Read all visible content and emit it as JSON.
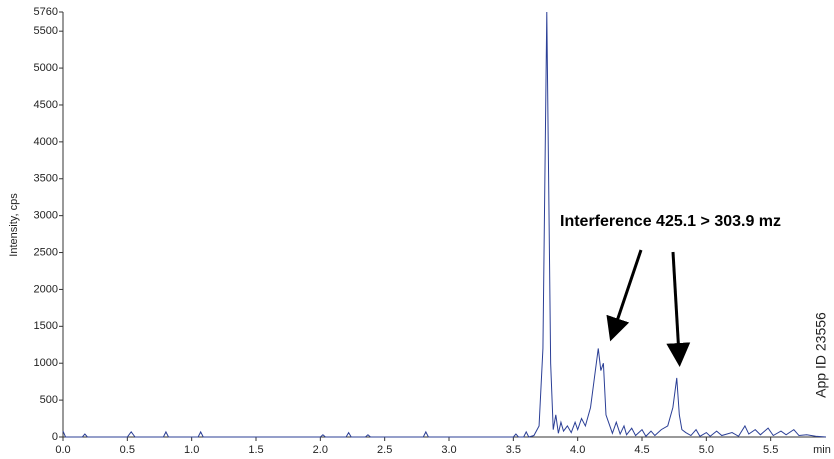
{
  "chart_data": {
    "type": "line",
    "y_label": "Intensity, cps",
    "x_unit_label": "min",
    "annotation": "Interference 425.1 > 303.9 mz",
    "side_note": "App ID 23556",
    "color": "#2b3f96",
    "xlim": [
      0,
      5.93
    ],
    "ylim": [
      0,
      5760
    ],
    "xticks": [
      {
        "value": 0,
        "label": "0.0"
      },
      0.5,
      {
        "value": 1,
        "label": "1.0"
      },
      1.5,
      {
        "value": 2,
        "label": "2.0"
      },
      2.5,
      {
        "value": 3,
        "label": "3.0"
      },
      3.5,
      {
        "value": 4,
        "label": "4.0"
      },
      4.5,
      {
        "value": 5,
        "label": "5.0"
      },
      5.5
    ],
    "yticks": [
      0,
      500,
      1000,
      1500,
      2000,
      2500,
      3000,
      3500,
      4000,
      4500,
      5000,
      5500,
      5760
    ],
    "x": [
      0.0,
      0.02,
      0.15,
      0.17,
      0.19,
      0.5,
      0.53,
      0.56,
      0.78,
      0.8,
      0.82,
      1.05,
      1.07,
      1.09,
      2.0,
      2.02,
      2.04,
      2.2,
      2.22,
      2.24,
      2.35,
      2.37,
      2.39,
      2.8,
      2.82,
      2.84,
      3.5,
      3.52,
      3.54,
      3.58,
      3.6,
      3.62,
      3.66,
      3.7,
      3.73,
      3.76,
      3.79,
      3.81,
      3.83,
      3.85,
      3.87,
      3.89,
      3.92,
      3.95,
      3.98,
      4.0,
      4.03,
      4.06,
      4.1,
      4.13,
      4.16,
      4.18,
      4.2,
      4.22,
      4.25,
      4.27,
      4.3,
      4.33,
      4.36,
      4.38,
      4.42,
      4.45,
      4.5,
      4.53,
      4.57,
      4.6,
      4.65,
      4.7,
      4.74,
      4.77,
      4.79,
      4.81,
      4.84,
      4.88,
      4.92,
      4.95,
      5.0,
      5.03,
      5.08,
      5.12,
      5.2,
      5.25,
      5.3,
      5.33,
      5.38,
      5.42,
      5.48,
      5.52,
      5.58,
      5.62,
      5.68,
      5.72,
      5.78,
      5.85,
      5.93
    ],
    "values": [
      80,
      0,
      0,
      40,
      0,
      0,
      70,
      0,
      0,
      70,
      0,
      0,
      70,
      0,
      0,
      30,
      0,
      0,
      60,
      0,
      0,
      30,
      0,
      0,
      70,
      0,
      0,
      40,
      0,
      0,
      70,
      0,
      20,
      150,
      1200,
      5760,
      1000,
      100,
      300,
      50,
      200,
      80,
      150,
      60,
      200,
      100,
      250,
      150,
      400,
      800,
      1200,
      900,
      1000,
      300,
      150,
      50,
      200,
      40,
      150,
      30,
      120,
      20,
      100,
      10,
      80,
      20,
      100,
      150,
      400,
      800,
      300,
      100,
      60,
      20,
      100,
      10,
      60,
      10,
      80,
      20,
      60,
      10,
      150,
      40,
      100,
      30,
      120,
      20,
      80,
      30,
      100,
      20,
      30,
      10,
      0
    ]
  }
}
